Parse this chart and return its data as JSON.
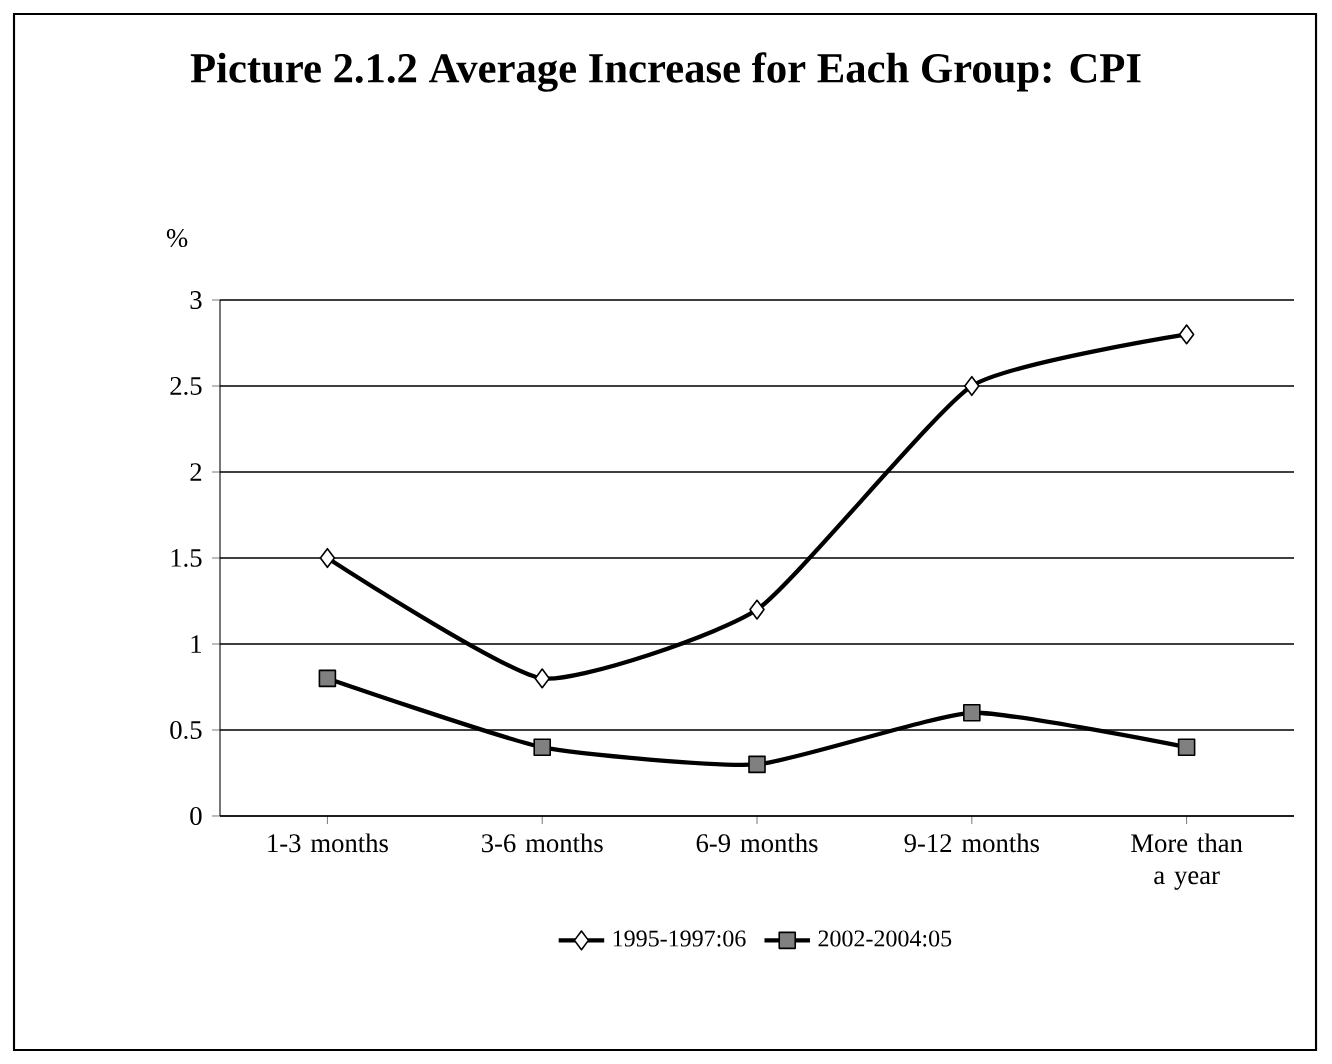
{
  "chart_data": {
    "type": "line",
    "title": "Picture 2.1.2 Average Increase for Each Group: CPI",
    "ylabel": "%",
    "categories": [
      "1-3 months",
      "3-6 months",
      "6-9 months",
      "9-12 months",
      "More than a year"
    ],
    "series": [
      {
        "name": "1995-1997:06",
        "color": "#000000",
        "marker": "diamond",
        "values": [
          1.5,
          0.8,
          1.2,
          2.5,
          2.8
        ]
      },
      {
        "name": "2002-2004:05",
        "color": "#000000",
        "marker": "square",
        "values": [
          0.8,
          0.4,
          0.3,
          0.6,
          0.4
        ]
      }
    ],
    "ylim": [
      0,
      3
    ],
    "yticks": [
      0,
      0.5,
      1,
      1.5,
      2,
      2.5,
      3
    ],
    "grid": "y",
    "legend": "bottom"
  }
}
